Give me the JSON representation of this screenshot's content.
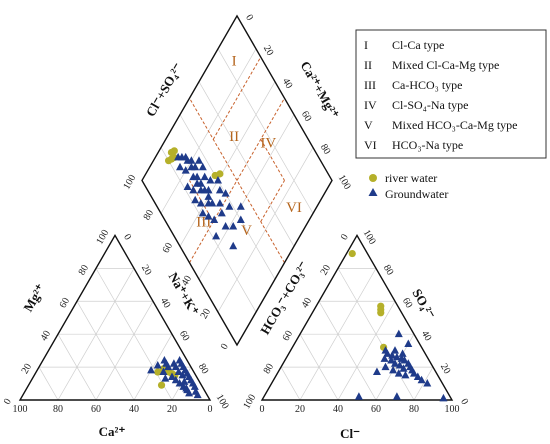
{
  "chart_data": {
    "type": "scatter",
    "diagram": "piper",
    "grid": true,
    "ticks": [
      "0",
      "20",
      "40",
      "60",
      "80",
      "100"
    ],
    "cation_triangle": {
      "xlabel": "Ca²⁺",
      "left_label": "Mg²⁺",
      "right_label": "Na⁺+K⁺"
    },
    "anion_triangle": {
      "xlabel": "Cl⁻",
      "left_label": "HCO₃⁻+CO₃²⁻",
      "right_label": "SO₄²⁻"
    },
    "diamond": {
      "left_label": "Cl⁻+SO₄²⁻",
      "right_label": "Ca²⁺+Mg²⁺",
      "regions": [
        "I",
        "II",
        "III",
        "IV",
        "V",
        "VI"
      ]
    },
    "legend_box": {
      "items": [
        {
          "num": "I",
          "text": "Cl-Ca type"
        },
        {
          "num": "II",
          "text": "Mixed Cl-Ca-Mg type"
        },
        {
          "num": "III",
          "text": "Ca-HCO₃ type"
        },
        {
          "num": "IV",
          "text": "Cl-SO₄-Na type"
        },
        {
          "num": "V",
          "text": "Mixed HCO₃-Ca-Mg type"
        },
        {
          "num": "VI",
          "text": "HCO₃-Na type"
        }
      ]
    },
    "legend": {
      "placement": "right",
      "items": [
        {
          "name": "river water",
          "color": "#b5b02a",
          "marker": "circle"
        },
        {
          "name": "Groundwater",
          "color": "#1f3b8a",
          "marker": "triangle"
        }
      ]
    },
    "series": [
      {
        "name": "river water",
        "cation_points": [
          {
            "na_k": 74,
            "mg": 15
          },
          {
            "na_k": 72,
            "mg": 16
          },
          {
            "na_k": 70,
            "mg": 17
          },
          {
            "na_k": 68,
            "mg": 18
          },
          {
            "na_k": 66,
            "mg": 19
          },
          {
            "na_k": 64,
            "mg": 17
          },
          {
            "na_k": 70,
            "mg": 9
          }
        ],
        "anion_points": [
          {
            "so4": 89,
            "cl": 3
          },
          {
            "so4": 57,
            "cl": 34
          },
          {
            "so4": 55,
            "cl": 35
          },
          {
            "so4": 53,
            "cl": 36
          },
          {
            "so4": 32,
            "cl": 48
          }
        ],
        "diamond_points": [
          {
            "cl_so4": 92,
            "ca_mg": 20
          },
          {
            "cl_so4": 91,
            "ca_mg": 22
          },
          {
            "cl_so4": 90,
            "ca_mg": 24
          },
          {
            "cl_so4": 92,
            "ca_mg": 26
          },
          {
            "cl_so4": 93,
            "ca_mg": 24
          },
          {
            "cl_so4": 63,
            "ca_mg": 40
          },
          {
            "cl_so4": 61,
            "ca_mg": 43
          }
        ]
      },
      {
        "name": "Groundwater",
        "cation_points": [
          {
            "na_k": 88,
            "mg": 8
          },
          {
            "na_k": 86,
            "mg": 10
          },
          {
            "na_k": 84,
            "mg": 12
          },
          {
            "na_k": 82,
            "mg": 14
          },
          {
            "na_k": 80,
            "mg": 16
          },
          {
            "na_k": 78,
            "mg": 18
          },
          {
            "na_k": 76,
            "mg": 20
          },
          {
            "na_k": 74,
            "mg": 22
          },
          {
            "na_k": 72,
            "mg": 24
          },
          {
            "na_k": 70,
            "mg": 22
          },
          {
            "na_k": 68,
            "mg": 20
          },
          {
            "na_k": 66,
            "mg": 22
          },
          {
            "na_k": 64,
            "mg": 24
          },
          {
            "na_k": 62,
            "mg": 21
          },
          {
            "na_k": 60,
            "mg": 18
          },
          {
            "na_k": 85,
            "mg": 6
          },
          {
            "na_k": 82,
            "mg": 8
          },
          {
            "na_k": 79,
            "mg": 10
          },
          {
            "na_k": 76,
            "mg": 12
          },
          {
            "na_k": 73,
            "mg": 14
          },
          {
            "na_k": 70,
            "mg": 13
          },
          {
            "na_k": 90,
            "mg": 5
          },
          {
            "na_k": 92,
            "mg": 3
          },
          {
            "na_k": 87,
            "mg": 4
          },
          {
            "na_k": 84,
            "mg": 7
          },
          {
            "na_k": 78,
            "mg": 15
          },
          {
            "na_k": 75,
            "mg": 17
          },
          {
            "na_k": 81,
            "mg": 11
          },
          {
            "na_k": 67,
            "mg": 17
          },
          {
            "na_k": 72,
            "mg": 20
          }
        ],
        "anion_points": [
          {
            "so4": 30,
            "cl": 50
          },
          {
            "so4": 28,
            "cl": 52
          },
          {
            "so4": 27,
            "cl": 55
          },
          {
            "so4": 26,
            "cl": 58
          },
          {
            "so4": 25,
            "cl": 61
          },
          {
            "so4": 24,
            "cl": 63
          },
          {
            "so4": 22,
            "cl": 66
          },
          {
            "so4": 20,
            "cl": 68
          },
          {
            "so4": 24,
            "cl": 56
          },
          {
            "so4": 22,
            "cl": 59
          },
          {
            "so4": 21,
            "cl": 62
          },
          {
            "so4": 19,
            "cl": 65
          },
          {
            "so4": 18,
            "cl": 70
          },
          {
            "so4": 16,
            "cl": 72
          },
          {
            "so4": 14,
            "cl": 75
          },
          {
            "so4": 20,
            "cl": 55
          },
          {
            "so4": 18,
            "cl": 60
          },
          {
            "so4": 16,
            "cl": 64
          },
          {
            "so4": 25,
            "cl": 52
          },
          {
            "so4": 28,
            "cl": 60
          },
          {
            "so4": 12,
            "cl": 78
          },
          {
            "so4": 17,
            "cl": 52
          },
          {
            "so4": 15,
            "cl": 68
          },
          {
            "so4": 30,
            "cl": 55
          },
          {
            "so4": 2,
            "cl": 70
          },
          {
            "so4": 2,
            "cl": 50
          },
          {
            "so4": 1,
            "cl": 95
          },
          {
            "so4": 40,
            "cl": 52
          },
          {
            "so4": 34,
            "cl": 60
          },
          {
            "so4": 10,
            "cl": 82
          }
        ],
        "diamond_points": [
          {
            "cl_so4": 88,
            "ca_mg": 26
          },
          {
            "cl_so4": 86,
            "ca_mg": 28
          },
          {
            "cl_so4": 84,
            "ca_mg": 30
          },
          {
            "cl_so4": 82,
            "ca_mg": 30
          },
          {
            "cl_so4": 80,
            "ca_mg": 32
          },
          {
            "cl_so4": 78,
            "ca_mg": 30
          },
          {
            "cl_so4": 76,
            "ca_mg": 32
          },
          {
            "cl_so4": 74,
            "ca_mg": 28
          },
          {
            "cl_so4": 72,
            "ca_mg": 30
          },
          {
            "cl_so4": 70,
            "ca_mg": 28
          },
          {
            "cl_so4": 68,
            "ca_mg": 30
          },
          {
            "cl_so4": 66,
            "ca_mg": 28
          },
          {
            "cl_so4": 64,
            "ca_mg": 30
          },
          {
            "cl_so4": 62,
            "ca_mg": 32
          },
          {
            "cl_so4": 60,
            "ca_mg": 30
          },
          {
            "cl_so4": 58,
            "ca_mg": 28
          },
          {
            "cl_so4": 56,
            "ca_mg": 30
          },
          {
            "cl_so4": 70,
            "ca_mg": 24
          },
          {
            "cl_so4": 66,
            "ca_mg": 22
          },
          {
            "cl_so4": 62,
            "ca_mg": 24
          },
          {
            "cl_so4": 58,
            "ca_mg": 22
          },
          {
            "cl_so4": 54,
            "ca_mg": 24
          },
          {
            "cl_so4": 52,
            "ca_mg": 34
          },
          {
            "cl_so4": 64,
            "ca_mg": 36
          },
          {
            "cl_so4": 68,
            "ca_mg": 34
          },
          {
            "cl_so4": 72,
            "ca_mg": 36
          },
          {
            "cl_so4": 76,
            "ca_mg": 36
          },
          {
            "cl_so4": 80,
            "ca_mg": 26
          },
          {
            "cl_so4": 84,
            "ca_mg": 24
          },
          {
            "cl_so4": 74,
            "ca_mg": 22
          },
          {
            "cl_so4": 60,
            "ca_mg": 40
          },
          {
            "cl_so4": 56,
            "ca_mg": 38
          },
          {
            "cl_so4": 52,
            "ca_mg": 40
          },
          {
            "cl_so4": 48,
            "ca_mg": 32
          },
          {
            "cl_so4": 50,
            "ca_mg": 26
          },
          {
            "cl_so4": 46,
            "ca_mg": 38
          },
          {
            "cl_so4": 42,
            "ca_mg": 30
          },
          {
            "cl_so4": 38,
            "ca_mg": 34
          },
          {
            "cl_so4": 44,
            "ca_mg": 22
          },
          {
            "cl_so4": 36,
            "ca_mg": 40
          },
          {
            "cl_so4": 32,
            "ca_mg": 28
          },
          {
            "cl_so4": 40,
            "ca_mg": 44
          }
        ]
      }
    ]
  }
}
